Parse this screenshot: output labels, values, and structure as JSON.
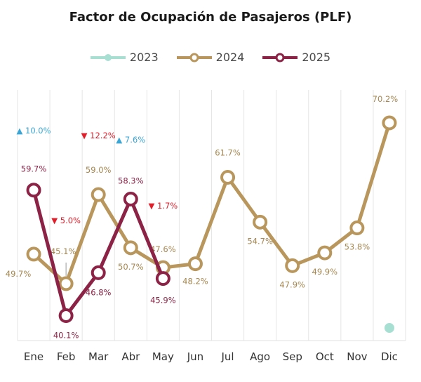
{
  "chart_data": {
    "type": "line",
    "title": "Factor de Ocupación de Pasajeros (PLF)",
    "categories": [
      "Ene",
      "Feb",
      "Mar",
      "Abr",
      "May",
      "Jun",
      "Jul",
      "Ago",
      "Sep",
      "Oct",
      "Nov",
      "Dic"
    ],
    "ylim": [
      35,
      75
    ],
    "grid": "vertical",
    "legend_position": "top-center",
    "series": [
      {
        "name": "2023",
        "color": "#a8dfd3",
        "values": [
          null,
          null,
          null,
          null,
          null,
          null,
          null,
          null,
          null,
          null,
          null,
          null
        ]
      },
      {
        "name": "2024",
        "color": "#b9965b",
        "values": [
          49.7,
          45.1,
          59.0,
          50.7,
          47.6,
          48.2,
          61.7,
          54.7,
          47.9,
          49.9,
          53.8,
          70.2
        ],
        "labels": [
          "49.7%",
          "45.1%",
          "59.0%",
          "50.7%",
          "47.6%",
          "48.2%",
          "61.7%",
          "54.7%",
          "47.9%",
          "49.9%",
          "53.8%",
          "70.2%"
        ]
      },
      {
        "name": "2025",
        "color": "#8c2246",
        "values": [
          59.7,
          40.1,
          46.8,
          58.3,
          45.9,
          null,
          null,
          null,
          null,
          null,
          null,
          null
        ],
        "labels": [
          "59.7%",
          "40.1%",
          "46.8%",
          "58.3%",
          "45.9%"
        ]
      }
    ],
    "annotations": [
      {
        "month": "Ene",
        "direction": "up",
        "text": "10.0%",
        "color": "#3aa6d6"
      },
      {
        "month": "Feb",
        "direction": "down",
        "text": "5.0%",
        "color": "#e01e2a"
      },
      {
        "month": "Mar",
        "direction": "down",
        "text": "12.2%",
        "color": "#e01e2a"
      },
      {
        "month": "Abr",
        "direction": "up",
        "text": "7.6%",
        "color": "#3aa6d6"
      },
      {
        "month": "May",
        "direction": "down",
        "text": "1.7%",
        "color": "#e01e2a"
      }
    ]
  }
}
